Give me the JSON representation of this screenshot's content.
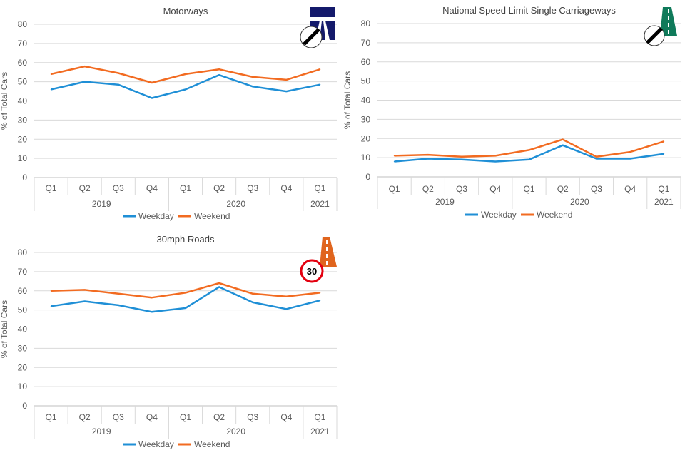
{
  "ylabel": "% of Total Cars",
  "quarters": [
    "Q1",
    "Q2",
    "Q3",
    "Q4",
    "Q1",
    "Q2",
    "Q3",
    "Q4",
    "Q1"
  ],
  "years": [
    {
      "label": "2019",
      "count": 4
    },
    {
      "label": "2020",
      "count": 4
    },
    {
      "label": "2021",
      "count": 1
    }
  ],
  "series_styles": [
    {
      "name": "Weekday",
      "color": "#1f8fd6"
    },
    {
      "name": "Weekend",
      "color": "#f26b21"
    }
  ],
  "icons": {
    "motorway": "motorway-sign-icon",
    "nsl": "national-speed-limit-sign-icon",
    "thirty": "30mph-sign-icon",
    "thirty_text": "30"
  },
  "chart_data": [
    {
      "type": "line",
      "title": "Motorways",
      "ylabel": "% of Total Cars",
      "ylim": [
        0,
        80
      ],
      "yticks": [
        0,
        10,
        20,
        30,
        40,
        50,
        60,
        70,
        80
      ],
      "categories": [
        "2019 Q1",
        "2019 Q2",
        "2019 Q3",
        "2019 Q4",
        "2020 Q1",
        "2020 Q2",
        "2020 Q3",
        "2020 Q4",
        "2021 Q1"
      ],
      "series": [
        {
          "name": "Weekday",
          "color": "#1f8fd6",
          "values": [
            46,
            50,
            48.5,
            41.5,
            46,
            53.5,
            47.5,
            45,
            48.5
          ]
        },
        {
          "name": "Weekend",
          "color": "#f26b21",
          "values": [
            54,
            58,
            54.5,
            49.5,
            54,
            56.5,
            52.5,
            51,
            56.5
          ]
        }
      ]
    },
    {
      "type": "line",
      "title": "National Speed Limit Single Carriageways",
      "ylabel": "% of Total Cars",
      "ylim": [
        0,
        80
      ],
      "yticks": [
        0,
        10,
        20,
        30,
        40,
        50,
        60,
        70,
        80
      ],
      "categories": [
        "2019 Q1",
        "2019 Q2",
        "2019 Q3",
        "2019 Q4",
        "2020 Q1",
        "2020 Q2",
        "2020 Q3",
        "2020 Q4",
        "2021 Q1"
      ],
      "series": [
        {
          "name": "Weekday",
          "color": "#1f8fd6",
          "values": [
            8,
            9.5,
            9,
            8,
            9,
            16.5,
            9.5,
            9.5,
            12
          ]
        },
        {
          "name": "Weekend",
          "color": "#f26b21",
          "values": [
            11,
            11.5,
            10.5,
            11,
            14,
            19.5,
            10.5,
            13,
            18.5
          ]
        }
      ]
    },
    {
      "type": "line",
      "title": "30mph Roads",
      "ylabel": "% of Total Cars",
      "ylim": [
        0,
        80
      ],
      "yticks": [
        0,
        10,
        20,
        30,
        40,
        50,
        60,
        70,
        80
      ],
      "categories": [
        "2019 Q1",
        "2019 Q2",
        "2019 Q3",
        "2019 Q4",
        "2020 Q1",
        "2020 Q2",
        "2020 Q3",
        "2020 Q4",
        "2021 Q1"
      ],
      "series": [
        {
          "name": "Weekday",
          "color": "#1f8fd6",
          "values": [
            52,
            54.5,
            52.5,
            49,
            51,
            62,
            54,
            50.5,
            55
          ]
        },
        {
          "name": "Weekend",
          "color": "#f26b21",
          "values": [
            60,
            60.5,
            58.5,
            56.5,
            59,
            64,
            58.5,
            57,
            59
          ]
        }
      ]
    }
  ]
}
